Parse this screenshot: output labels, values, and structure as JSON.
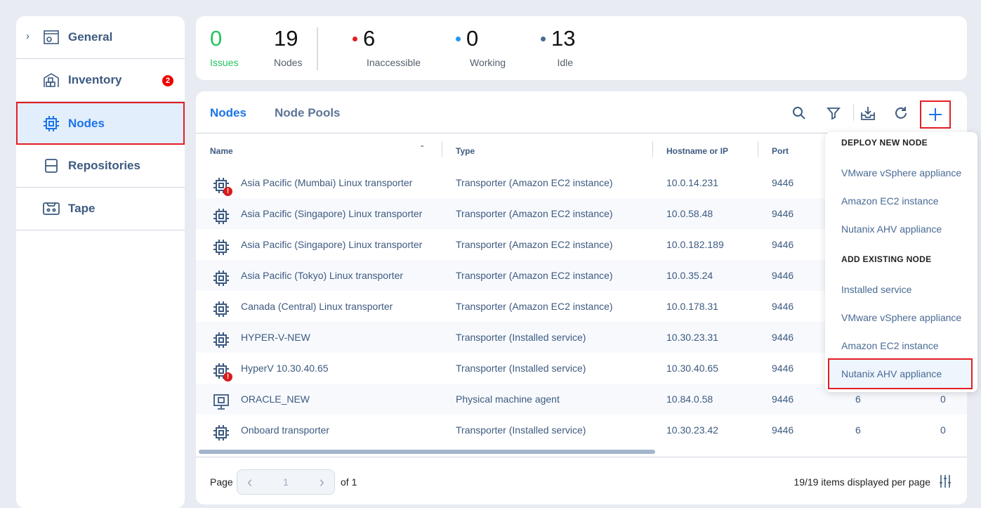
{
  "sidebar": {
    "items": [
      {
        "label": "General",
        "icon": "settings-window-icon",
        "badge": null
      },
      {
        "label": "Inventory",
        "icon": "inventory-house-icon",
        "badge": "2"
      },
      {
        "label": "Nodes",
        "icon": "chip-icon",
        "active": true
      },
      {
        "label": "Repositories",
        "icon": "database-icon"
      },
      {
        "label": "Tape",
        "icon": "tape-icon"
      }
    ]
  },
  "stats": {
    "issues": {
      "value": "0",
      "label": "Issues"
    },
    "nodes": {
      "value": "19",
      "label": "Nodes"
    },
    "inaccessible": {
      "value": "6",
      "label": "Inaccessible"
    },
    "working": {
      "value": "0",
      "label": "Working"
    },
    "idle": {
      "value": "13",
      "label": "Idle"
    }
  },
  "colors": {
    "accent": "#1a73e8",
    "issues": "#22c55e",
    "inaccessible": "#e02020",
    "working": "#2196f3",
    "idle": "#4a6a94",
    "highlight": "#e31e24"
  },
  "tabs": [
    "Nodes",
    "Node Pools"
  ],
  "table": {
    "columns": [
      "Name",
      "Type",
      "Hostname or IP",
      "Port"
    ],
    "rows": [
      {
        "name": "Asia Pacific (Mumbai) Linux transporter",
        "type": "Transporter (Amazon EC2 instance)",
        "host": "10.0.14.231",
        "port": "9446",
        "error": true
      },
      {
        "name": "Asia Pacific (Singapore) Linux transporter",
        "type": "Transporter (Amazon EC2 instance)",
        "host": "10.0.58.48",
        "port": "9446"
      },
      {
        "name": "Asia Pacific (Singapore) Linux transporter",
        "type": "Transporter (Amazon EC2 instance)",
        "host": "10.0.182.189",
        "port": "9446"
      },
      {
        "name": "Asia Pacific (Tokyo) Linux transporter",
        "type": "Transporter (Amazon EC2 instance)",
        "host": "10.0.35.24",
        "port": "9446"
      },
      {
        "name": "Canada (Central) Linux transporter",
        "type": "Transporter (Amazon EC2 instance)",
        "host": "10.0.178.31",
        "port": "9446"
      },
      {
        "name": "HYPER-V-NEW",
        "type": "Transporter (Installed service)",
        "host": "10.30.23.31",
        "port": "9446"
      },
      {
        "name": "HyperV 10.30.40.65",
        "type": "Transporter (Installed service)",
        "host": "10.30.40.65",
        "port": "9446",
        "error": true
      },
      {
        "name": "ORACLE_NEW",
        "type": "Physical machine agent",
        "host": "10.84.0.58",
        "port": "9446",
        "c5": "6",
        "c6": "0",
        "agent": true
      },
      {
        "name": "Onboard transporter",
        "type": "Transporter (Installed service)",
        "host": "10.30.23.42",
        "port": "9446",
        "c5": "6",
        "c6": "0"
      }
    ]
  },
  "footer": {
    "page_label": "Page",
    "page": "1",
    "of": "of 1",
    "items": "19/19 items displayed per page"
  },
  "menu": {
    "deploy_header": "DEPLOY NEW NODE",
    "deploy": [
      "VMware vSphere appliance",
      "Amazon EC2 instance",
      "Nutanix AHV appliance"
    ],
    "add_header": "ADD EXISTING NODE",
    "add": [
      "Installed service",
      "VMware vSphere appliance",
      "Amazon EC2 instance",
      "Nutanix AHV appliance"
    ]
  }
}
